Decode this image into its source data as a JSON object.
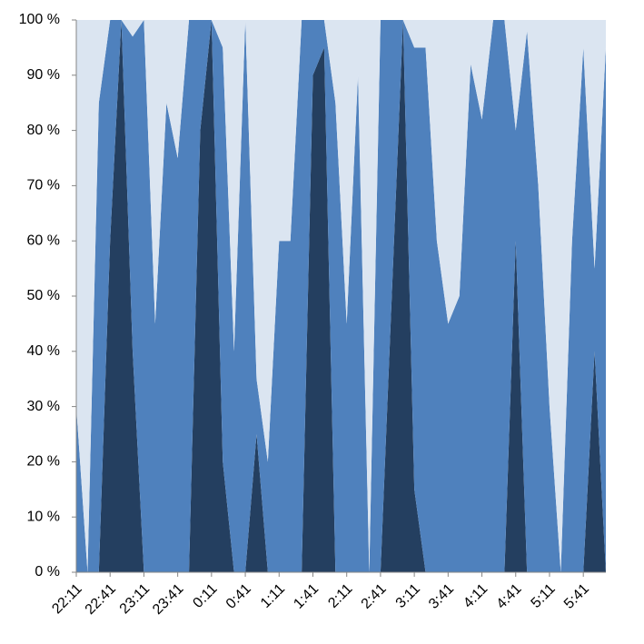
{
  "chart_data": {
    "type": "stacked_area_percent",
    "categories": [
      "22:11",
      null,
      null,
      "22:41",
      null,
      null,
      "23:11",
      null,
      null,
      "23:41",
      null,
      null,
      "0:11",
      null,
      null,
      "0:41",
      null,
      null,
      "1:11",
      null,
      null,
      "1:41",
      null,
      null,
      "2:11",
      null,
      null,
      "2:41",
      null,
      null,
      "3:11",
      null,
      null,
      "3:41",
      null,
      null,
      "4:11",
      null,
      null,
      "4:41",
      null,
      null,
      "5:11",
      null,
      null,
      "5:41",
      null,
      null
    ],
    "series": [
      {
        "color": "#243f60",
        "values": [
          0,
          0,
          0,
          60,
          100,
          40,
          0,
          0,
          0,
          0,
          0,
          80,
          100,
          20,
          0,
          0,
          25,
          0,
          0,
          0,
          0,
          90,
          95,
          0,
          0,
          0,
          0,
          0,
          50,
          100,
          15,
          0,
          0,
          0,
          0,
          0,
          0,
          0,
          0,
          60,
          0,
          0,
          0,
          0,
          0,
          0,
          40,
          0
        ]
      },
      {
        "color": "#4f81bd",
        "values": [
          30,
          0,
          85,
          40,
          0,
          57,
          100,
          45,
          85,
          75,
          100,
          20,
          0,
          75,
          40,
          100,
          10,
          20,
          60,
          60,
          100,
          10,
          5,
          85,
          45,
          90,
          0,
          100,
          50,
          0,
          80,
          95,
          60,
          45,
          50,
          92,
          82,
          100,
          100,
          20,
          98,
          70,
          30,
          0,
          60,
          95,
          15,
          95
        ]
      },
      {
        "color": "#dbe5f1",
        "values": [
          70,
          100,
          15,
          0,
          0,
          3,
          0,
          55,
          15,
          25,
          0,
          0,
          0,
          5,
          60,
          0,
          65,
          80,
          40,
          40,
          0,
          0,
          0,
          15,
          55,
          10,
          100,
          0,
          0,
          0,
          5,
          5,
          40,
          55,
          50,
          8,
          18,
          0,
          0,
          20,
          2,
          30,
          70,
          100,
          40,
          5,
          45,
          5
        ]
      }
    ],
    "ylim": [
      0,
      100
    ],
    "yticks": [
      {
        "value": 0,
        "label": "0 %"
      },
      {
        "value": 10,
        "label": "10 %"
      },
      {
        "value": 20,
        "label": "20 %"
      },
      {
        "value": 30,
        "label": "30 %"
      },
      {
        "value": 40,
        "label": "40 %"
      },
      {
        "value": 50,
        "label": "50 %"
      },
      {
        "value": 60,
        "label": "60 %"
      },
      {
        "value": 70,
        "label": "70 %"
      },
      {
        "value": 80,
        "label": "80 %"
      },
      {
        "value": 90,
        "label": "90 %"
      },
      {
        "value": 100,
        "label": "100 %"
      }
    ]
  }
}
